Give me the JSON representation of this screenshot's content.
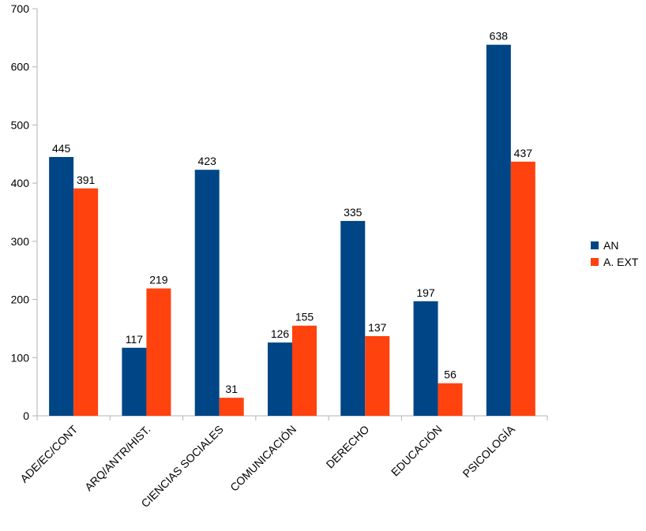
{
  "chart_data": {
    "type": "bar",
    "categories": [
      "ADE/EC/CONT",
      "ARQ/ANTR/HIST.",
      "CIENCIAS SOCIALES",
      "COMUNICACIÓN",
      "DERECHO",
      "EDUCACIÓN",
      "PSICOLOGÍA"
    ],
    "series": [
      {
        "name": "AN",
        "color": "#004586",
        "values": [
          445,
          117,
          423,
          126,
          335,
          197,
          638
        ]
      },
      {
        "name": "A. EXT",
        "color": "#ff420e",
        "values": [
          391,
          219,
          31,
          155,
          137,
          56,
          437
        ]
      }
    ],
    "title": "",
    "xlabel": "",
    "ylabel": "",
    "ylim": [
      0,
      700
    ],
    "yticks": [
      0,
      100,
      200,
      300,
      400,
      500,
      600,
      700
    ],
    "grid": false,
    "legend_position": "right",
    "data_labels": true
  }
}
